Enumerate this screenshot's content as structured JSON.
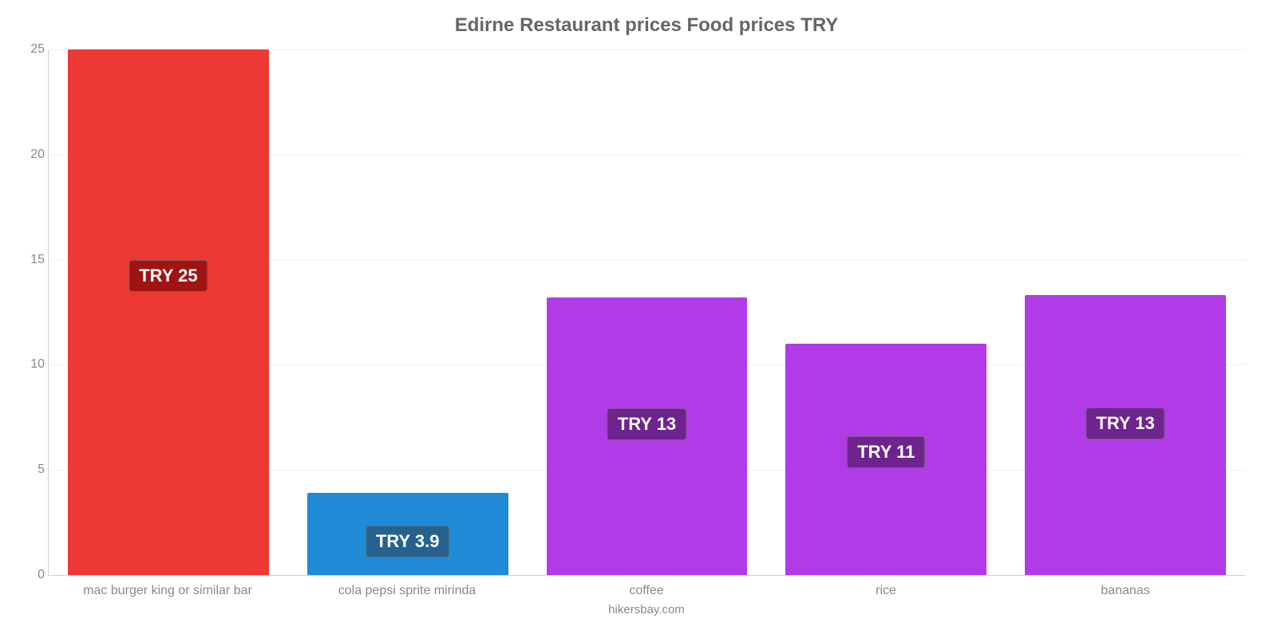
{
  "chart": {
    "type": "bar",
    "title": "Edirne Restaurant prices Food prices TRY",
    "title_fontsize": 24,
    "title_color": "#666666",
    "background_color": "#ffffff",
    "grid_color": "#f2f2f2",
    "axis_color": "#d0d0d0",
    "tick_color": "#888888",
    "tick_fontsize": 16,
    "ylim_min": 0,
    "ylim_max": 25,
    "ytick_step": 5,
    "bar_width_pct": 84,
    "label_fontsize": 22,
    "categories": [
      "mac burger king or similar bar",
      "cola pepsi sprite mirinda",
      "coffee",
      "rice",
      "bananas"
    ],
    "values": [
      25,
      3.9,
      13.2,
      11,
      13.3
    ],
    "display_labels": [
      "TRY 25",
      "TRY 3.9",
      "TRY 13",
      "TRY 11",
      "TRY 13"
    ],
    "bar_colors": [
      "#ed3833",
      "#1f8ad6",
      "#b13be6",
      "#b13be6",
      "#b13be6"
    ],
    "label_bg_colors": [
      "#a01414",
      "#25628e",
      "#6e238f",
      "#6e238f",
      "#6e238f"
    ],
    "credit": "hikersbay.com"
  }
}
